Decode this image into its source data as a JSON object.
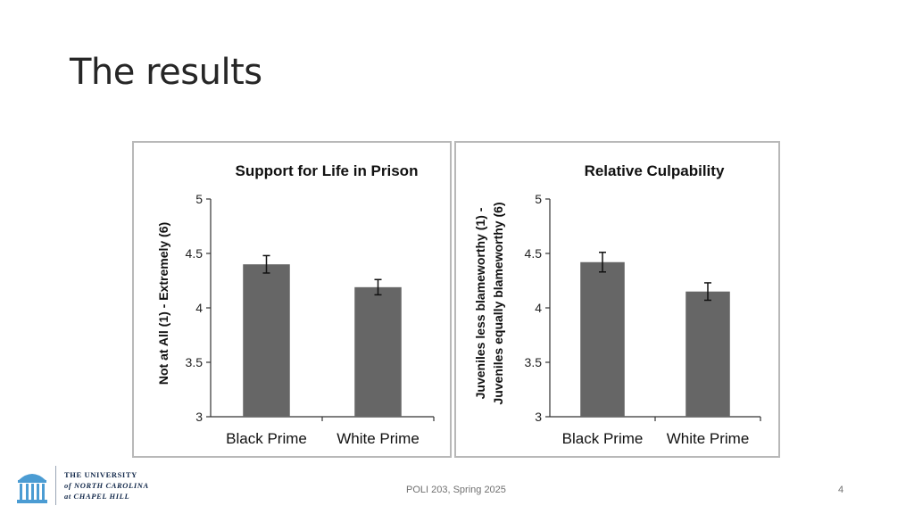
{
  "slide": {
    "title": "The results",
    "footer": "POLI 203, Spring 2025",
    "page_number": "4"
  },
  "logo": {
    "line1": "THE UNIVERSITY",
    "line2": "of NORTH CAROLINA",
    "line3": "at CHAPEL HILL",
    "color": "#13294b"
  },
  "colors": {
    "bar": "#666666",
    "axis": "#333333",
    "panel_border": "#b8b8b8"
  },
  "chart_data": [
    {
      "type": "bar",
      "title": "Support for Life in Prison",
      "ylabel": [
        "Not at All (1) - Extremely (6)"
      ],
      "categories": [
        "Black Prime",
        "White Prime"
      ],
      "values": [
        4.4,
        4.19
      ],
      "error": [
        0.08,
        0.07
      ],
      "ylim": [
        3,
        5
      ],
      "yticks": [
        "3",
        "3.5",
        "4",
        "4.5",
        "5"
      ],
      "grid": false
    },
    {
      "type": "bar",
      "title": "Relative Culpability",
      "ylabel": [
        "Juveniles less blameworthy (1) -",
        "Juveniles equally blameworthy (6)"
      ],
      "categories": [
        "Black Prime",
        "White Prime"
      ],
      "values": [
        4.42,
        4.15
      ],
      "error": [
        0.09,
        0.08
      ],
      "ylim": [
        3,
        5
      ],
      "yticks": [
        "3",
        "3.5",
        "4",
        "4.5",
        "5"
      ],
      "grid": false
    }
  ]
}
